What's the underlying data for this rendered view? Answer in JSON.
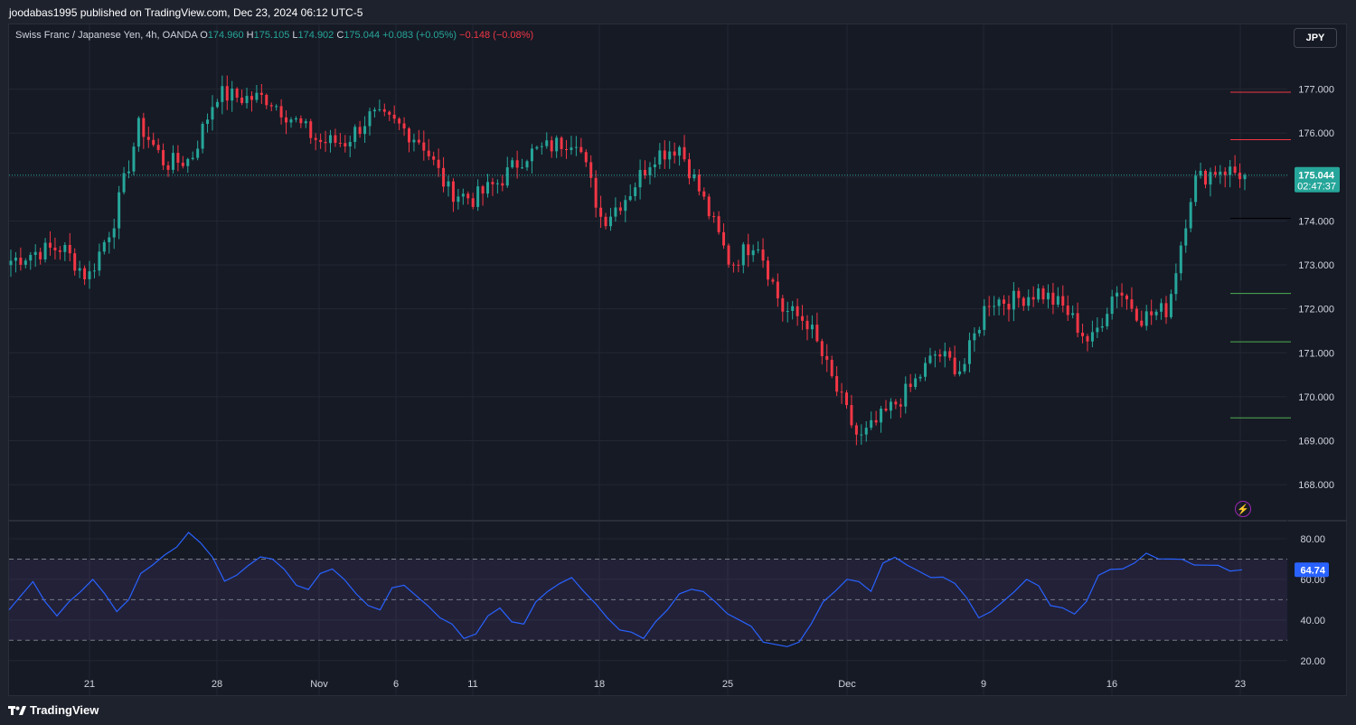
{
  "header": {
    "publisher_line": "joodabas1995 published on TradingView.com, Dec 23, 2024 06:12 UTC-5"
  },
  "legend": {
    "symbol": "Swiss Franc / Japanese Yen, 4h, OANDA",
    "open_label": "O",
    "open": "174.960",
    "high_label": "H",
    "high": "175.105",
    "low_label": "L",
    "low": "174.902",
    "close_label": "C",
    "close": "175.044",
    "change": "+0.083 (+0.05%)",
    "change2": "−0.148 (−0.08%)"
  },
  "currency_button": "JPY",
  "brand": "TradingView",
  "chart_data": [
    {
      "type": "candlestick",
      "title": "Swiss Franc / Japanese Yen, 4h, OANDA",
      "ylim": [
        167.2,
        178.0
      ],
      "y_ticks": [
        "168.000",
        "169.000",
        "170.000",
        "171.000",
        "172.000",
        "173.000",
        "174.000",
        "175.000",
        "176.000",
        "177.000"
      ],
      "x_ticks": [
        "21",
        "28",
        "Nov",
        "6",
        "11",
        "18",
        "25",
        "Dec",
        "9",
        "16",
        "23"
      ],
      "last_price": "175.044",
      "countdown": "02:47:37",
      "last_value_numeric": 175.044,
      "horizontal_levels": [
        {
          "value": 176.93,
          "color": "#f23645"
        },
        {
          "value": 175.85,
          "color": "#f23645"
        },
        {
          "value": 174.06,
          "color": "#131722"
        },
        {
          "value": 172.35,
          "color": "#4caf50"
        },
        {
          "value": 171.25,
          "color": "#4caf50"
        },
        {
          "value": 169.52,
          "color": "#4caf50"
        }
      ],
      "close_path": [
        {
          "date": "Oct 18",
          "close": 173.1
        },
        {
          "date": "Oct 19",
          "close": 173.3
        },
        {
          "date": "Oct 21",
          "close": 173.4
        },
        {
          "date": "Oct 22",
          "close": 172.7
        },
        {
          "date": "Oct 23",
          "close": 174.0
        },
        {
          "date": "Oct 24",
          "close": 176.2
        },
        {
          "date": "Oct 25",
          "close": 175.3
        },
        {
          "date": "Oct 26",
          "close": 175.4
        },
        {
          "date": "Oct 28",
          "close": 176.9
        },
        {
          "date": "Oct 29",
          "close": 176.8
        },
        {
          "date": "Oct 30",
          "close": 176.8
        },
        {
          "date": "Oct 31",
          "close": 176.3
        },
        {
          "date": "Nov 1",
          "close": 175.8
        },
        {
          "date": "Nov 4",
          "close": 175.8
        },
        {
          "date": "Nov 5",
          "close": 176.4
        },
        {
          "date": "Nov 6",
          "close": 176.2
        },
        {
          "date": "Nov 7",
          "close": 175.8
        },
        {
          "date": "Nov 8",
          "close": 174.7
        },
        {
          "date": "Nov 11",
          "close": 174.5
        },
        {
          "date": "Nov 12",
          "close": 174.9
        },
        {
          "date": "Nov 13",
          "close": 175.5
        },
        {
          "date": "Nov 14",
          "close": 175.7
        },
        {
          "date": "Nov 15",
          "close": 175.9
        },
        {
          "date": "Nov 18",
          "close": 174.0
        },
        {
          "date": "Nov 19",
          "close": 174.6
        },
        {
          "date": "Nov 20",
          "close": 175.5
        },
        {
          "date": "Nov 21",
          "close": 175.7
        },
        {
          "date": "Nov 22",
          "close": 174.4
        },
        {
          "date": "Nov 25",
          "close": 173.0
        },
        {
          "date": "Nov 26",
          "close": 173.6
        },
        {
          "date": "Nov 27",
          "close": 172.0
        },
        {
          "date": "Nov 28",
          "close": 171.7
        },
        {
          "date": "Nov 29",
          "close": 170.3
        },
        {
          "date": "Dec 2",
          "close": 169.0
        },
        {
          "date": "Dec 3",
          "close": 169.6
        },
        {
          "date": "Dec 4",
          "close": 170.2
        },
        {
          "date": "Dec 5",
          "close": 171.0
        },
        {
          "date": "Dec 6",
          "close": 170.6
        },
        {
          "date": "Dec 9",
          "close": 172.2
        },
        {
          "date": "Dec 10",
          "close": 172.2
        },
        {
          "date": "Dec 11",
          "close": 172.4
        },
        {
          "date": "Dec 12",
          "close": 172.0
        },
        {
          "date": "Dec 13",
          "close": 171.2
        },
        {
          "date": "Dec 16",
          "close": 172.5
        },
        {
          "date": "Dec 17",
          "close": 171.8
        },
        {
          "date": "Dec 18",
          "close": 172.0
        },
        {
          "date": "Dec 19",
          "close": 174.9
        },
        {
          "date": "Dec 20",
          "close": 175.2
        },
        {
          "date": "Dec 23",
          "close": 175.044
        }
      ]
    },
    {
      "type": "line",
      "title": "",
      "ylim": [
        15,
        88
      ],
      "y_ticks": [
        "20.00",
        "40.00",
        "60.00",
        "80.00"
      ],
      "bands": [
        30,
        50,
        70
      ],
      "last_value": "64.74",
      "last_value_numeric": 64.74,
      "color": "#2962ff",
      "values": [
        45,
        52,
        58,
        50,
        42,
        48,
        55,
        60,
        52,
        45,
        50,
        62,
        68,
        72,
        75,
        84,
        78,
        70,
        60,
        62,
        66,
        72,
        70,
        64,
        58,
        55,
        62,
        66,
        60,
        52,
        48,
        45,
        55,
        58,
        52,
        46,
        42,
        38,
        30,
        34,
        42,
        45,
        40,
        38,
        48,
        55,
        58,
        60,
        55,
        48,
        40,
        36,
        34,
        30,
        40,
        45,
        52,
        56,
        54,
        48,
        44,
        40,
        36,
        30,
        28,
        26,
        30,
        38,
        48,
        55,
        60,
        58,
        55,
        68,
        70,
        68,
        64,
        60,
        62,
        58,
        50,
        42,
        44,
        48,
        55,
        60,
        56,
        48,
        46,
        42,
        50,
        62,
        64,
        66,
        68,
        72,
        71,
        70,
        69,
        68,
        67,
        66,
        65,
        64.74
      ]
    }
  ]
}
